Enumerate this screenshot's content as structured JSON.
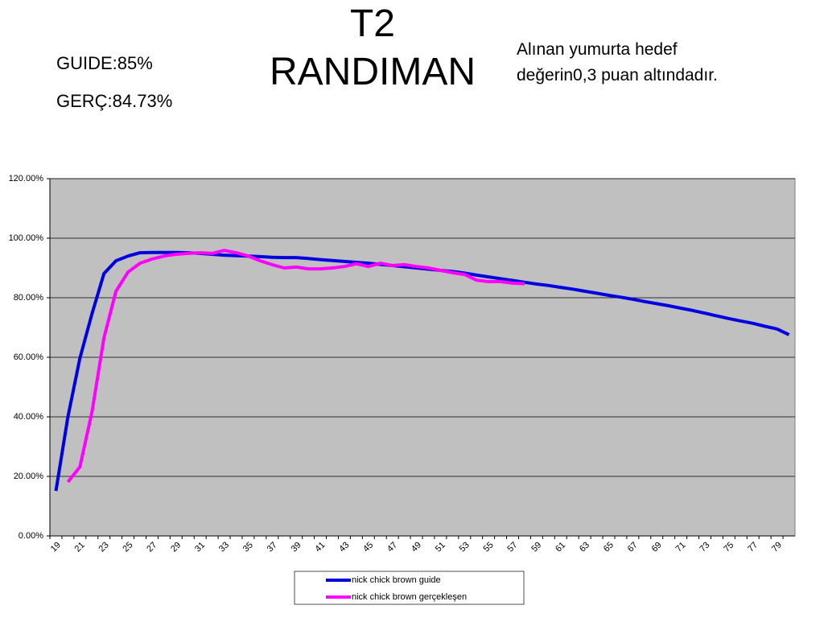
{
  "chart_data": {
    "type": "line",
    "title": "T2 RANDIMAN",
    "annotations": [
      "GUIDE:85%",
      "GERÇ:84.73%",
      "Alınan yumurta hedef değerin0,3 puan altındadır."
    ],
    "categories": [
      "19",
      null,
      "21",
      null,
      "23",
      null,
      "25",
      null,
      "27",
      null,
      "29",
      null,
      "31",
      null,
      "33",
      null,
      "35",
      null,
      "37",
      null,
      "39",
      null,
      "41",
      null,
      "43",
      null,
      "45",
      null,
      "47",
      null,
      "49",
      null,
      "51",
      null,
      "53",
      null,
      "55",
      null,
      "57",
      null,
      "59",
      null,
      "61",
      null,
      "63",
      null,
      "65",
      null,
      "67",
      null,
      "69",
      null,
      "71",
      null,
      "73",
      null,
      "75",
      null,
      "77",
      null,
      "79",
      null
    ],
    "series": [
      {
        "name": "nick chick brown guide",
        "color": "#0000e0",
        "values": [
          15.1,
          40,
          59.7,
          74.6,
          88.1,
          92.4,
          94,
          95.1,
          95.2,
          95.2,
          95.2,
          95.1,
          94.9,
          94.6,
          94.3,
          94.1,
          94,
          93.8,
          93.6,
          93.5,
          93.5,
          93.2,
          92.8,
          92.5,
          92.2,
          91.9,
          91.6,
          91.2,
          90.8,
          90.4,
          90,
          89.6,
          89.2,
          88.8,
          88.3,
          87.6,
          87,
          86.4,
          85.8,
          85.2,
          84.6,
          84.1,
          83.5,
          82.9,
          82.2,
          81.5,
          80.8,
          80.2,
          79.5,
          78.7,
          78,
          77.3,
          76.5,
          75.7,
          74.8,
          73.9,
          73,
          72.2,
          71.4,
          70.4,
          69.5,
          67.6
        ]
      },
      {
        "name": "nick chick brown gerçekleşen",
        "color": "#ff00ff",
        "values": [
          null,
          18.1,
          23.2,
          41.6,
          66.5,
          82.2,
          88.6,
          91.6,
          93,
          94,
          94.6,
          94.9,
          95.1,
          94.9,
          95.9,
          95.1,
          94,
          92.4,
          91.1,
          90,
          90.3,
          89.7,
          89.7,
          90,
          90.5,
          91.4,
          90.5,
          91.6,
          90.8,
          91.1,
          90.5,
          90,
          89.2,
          88.4,
          87.8,
          85.9,
          85.4,
          85.4,
          84.9,
          84.7,
          null,
          null,
          null,
          null,
          null,
          null,
          null,
          null,
          null,
          null,
          null,
          null,
          null,
          null,
          null,
          null,
          null,
          null,
          null,
          null,
          null,
          null
        ]
      }
    ],
    "ylim": [
      0,
      120
    ],
    "yticks": [
      {
        "value": 0,
        "label": "0.00%"
      },
      {
        "value": 20,
        "label": "20.00%"
      },
      {
        "value": 40,
        "label": "40.00%"
      },
      {
        "value": 60,
        "label": "60.00%"
      },
      {
        "value": 80,
        "label": "80.00%"
      },
      {
        "value": 100,
        "label": "100.00%"
      },
      {
        "value": 120,
        "label": "120.00%"
      }
    ],
    "grid": true,
    "legend": "bottom"
  }
}
